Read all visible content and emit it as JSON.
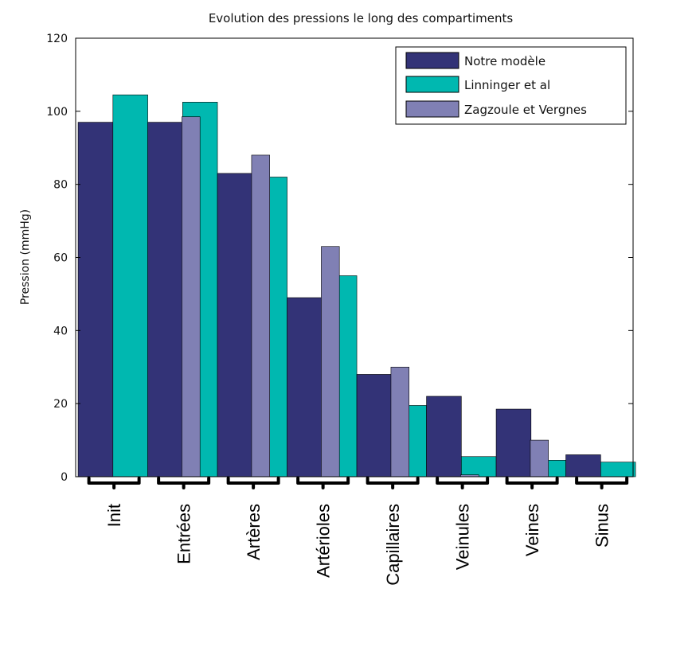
{
  "chart_data": {
    "type": "bar",
    "title": "Evolution des pressions le long des compartiments",
    "ylabel": "Pression (mmHg)",
    "xlabel": "",
    "ylim": [
      0,
      120
    ],
    "yticks": [
      "0",
      "20",
      "40",
      "60",
      "80",
      "100",
      "120"
    ],
    "grid": false,
    "legend_position": "top-right",
    "categories": [
      "Init",
      "Entrées",
      "Artères",
      "Artérioles",
      "Capillaires",
      "Veinules",
      "Veines",
      "Sinus"
    ],
    "series": [
      {
        "name": "Notre modèle",
        "color": "#333377",
        "values": [
          97,
          97,
          83,
          49,
          28,
          22,
          18.5,
          6
        ]
      },
      {
        "name": "Linninger et al",
        "color": "#00b8b0",
        "values": [
          104.5,
          102.5,
          82,
          55,
          19.5,
          5.5,
          4.5,
          4
        ]
      },
      {
        "name": "Zagzoule et Vergnes",
        "color": "#8080b4",
        "values": [
          null,
          98.5,
          88,
          63,
          30,
          0.5,
          10,
          null
        ]
      }
    ]
  }
}
